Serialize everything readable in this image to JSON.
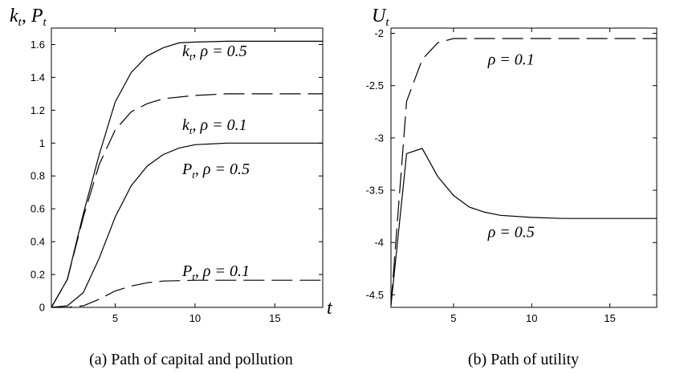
{
  "chart_data": [
    {
      "type": "line",
      "ylabel": "k_t, P_t",
      "xlabel": "t",
      "caption": "(a) Path of capital and pollution",
      "xlim": [
        1,
        18
      ],
      "ylim": [
        0,
        1.7
      ],
      "xticks": [
        "5",
        "10",
        "15"
      ],
      "xtick_values": [
        5,
        10,
        15
      ],
      "yticks": [
        "0",
        "0.2",
        "0.4",
        "0.6",
        "0.8",
        "1",
        "1.2",
        "1.4",
        "1.6"
      ],
      "ytick_values": [
        0,
        0.2,
        0.4,
        0.6,
        0.8,
        1.0,
        1.2,
        1.4,
        1.6
      ],
      "series": [
        {
          "name": "k_t, ρ = 0.5",
          "style": "solid",
          "x": [
            1,
            2,
            3,
            4,
            5,
            6,
            7,
            8,
            9,
            10,
            12,
            14,
            16,
            18
          ],
          "values": [
            0,
            0.17,
            0.57,
            0.93,
            1.25,
            1.43,
            1.53,
            1.58,
            1.61,
            1.615,
            1.62,
            1.62,
            1.62,
            1.62
          ]
        },
        {
          "name": "k_t, ρ = 0.1",
          "style": "dashed",
          "x": [
            1,
            2,
            3,
            4,
            5,
            6,
            7,
            8,
            10,
            12,
            14,
            16,
            18
          ],
          "values": [
            0,
            0.17,
            0.55,
            0.87,
            1.08,
            1.19,
            1.24,
            1.27,
            1.29,
            1.3,
            1.3,
            1.3,
            1.3
          ]
        },
        {
          "name": "P_t, ρ = 0.5",
          "style": "solid",
          "x": [
            1,
            2,
            3,
            4,
            5,
            6,
            7,
            8,
            9,
            10,
            12,
            14,
            16,
            18
          ],
          "values": [
            0,
            0.01,
            0.09,
            0.3,
            0.55,
            0.74,
            0.86,
            0.93,
            0.97,
            0.99,
            1.0,
            1.0,
            1.0,
            1.0
          ]
        },
        {
          "name": "P_t, ρ = 0.1",
          "style": "dashed",
          "x": [
            1,
            2,
            3,
            4,
            5,
            6,
            7,
            8,
            10,
            12,
            14,
            16,
            18
          ],
          "values": [
            0,
            0.0,
            0.01,
            0.05,
            0.1,
            0.13,
            0.15,
            0.16,
            0.165,
            0.165,
            0.165,
            0.165,
            0.165
          ]
        }
      ],
      "annotations": [
        {
          "text": "k_t, ρ = 0.5",
          "at": [
            9.2,
            1.53
          ]
        },
        {
          "text": "k_t, ρ = 0.1",
          "at": [
            9.2,
            1.08
          ]
        },
        {
          "text": "P_t, ρ = 0.5",
          "at": [
            9.2,
            0.81
          ]
        },
        {
          "text": "P_t, ρ = 0.1",
          "at": [
            9.2,
            0.19
          ]
        }
      ]
    },
    {
      "type": "line",
      "ylabel": "U_t",
      "caption": "(b) Path of utility",
      "xlim": [
        1,
        18
      ],
      "ylim": [
        -4.62,
        -1.95
      ],
      "xticks": [
        "5",
        "10",
        "15"
      ],
      "xtick_values": [
        5,
        10,
        15
      ],
      "yticks": [
        "-2",
        "-2.5",
        "-3",
        "-3.5",
        "-4",
        "-4.5"
      ],
      "ytick_values": [
        -2,
        -2.5,
        -3,
        -3.5,
        -4,
        -4.5
      ],
      "series": [
        {
          "name": "ρ = 0.1",
          "style": "dashed",
          "x": [
            1,
            2,
            3,
            4,
            5,
            6,
            8,
            10,
            12,
            14,
            16,
            18
          ],
          "values": [
            -4.6,
            -2.65,
            -2.25,
            -2.09,
            -2.05,
            -2.05,
            -2.05,
            -2.05,
            -2.05,
            -2.05,
            -2.05,
            -2.05
          ]
        },
        {
          "name": "ρ = 0.5",
          "style": "solid",
          "x": [
            1,
            2,
            3,
            4,
            5,
            6,
            7,
            8,
            10,
            12,
            14,
            16,
            18
          ],
          "values": [
            -4.6,
            -3.15,
            -3.1,
            -3.37,
            -3.55,
            -3.66,
            -3.71,
            -3.74,
            -3.76,
            -3.77,
            -3.77,
            -3.77,
            -3.77
          ]
        }
      ],
      "annotations": [
        {
          "text": "ρ = 0.1",
          "at": [
            7.2,
            -2.3
          ]
        },
        {
          "text": "ρ = 0.5",
          "at": [
            7.2,
            -3.95
          ]
        }
      ]
    }
  ]
}
